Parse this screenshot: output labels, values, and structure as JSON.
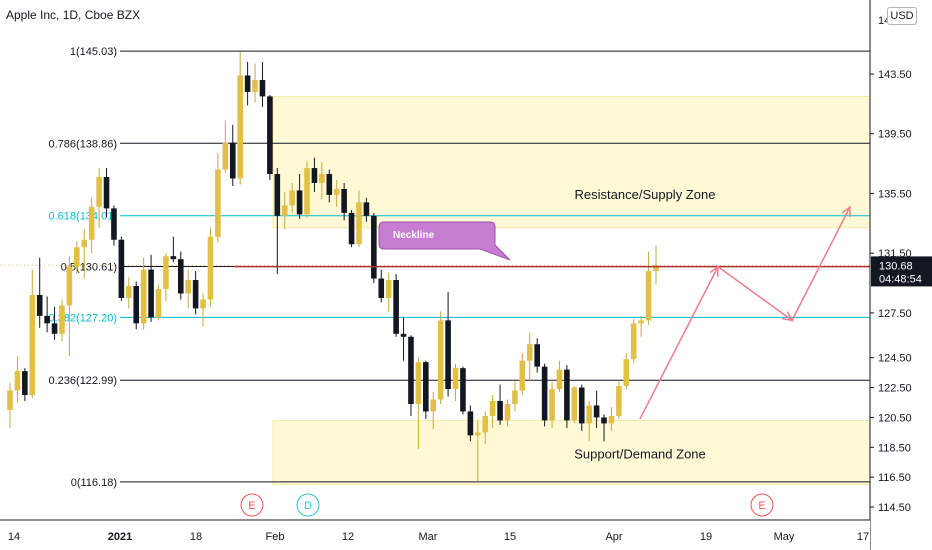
{
  "header": {
    "symbol_title": "Apple Inc, 1D, Cboe BZX",
    "currency": "USD"
  },
  "price_axis": {
    "ticks": [
      "143.50",
      "139.50",
      "135.50",
      "131.50",
      "127.50",
      "124.50",
      "122.50",
      "120.50",
      "118.50",
      "116.50",
      "114.50"
    ],
    "top_partial": "14",
    "current_price": "130.68",
    "countdown": "04:48:54"
  },
  "time_axis": {
    "ticks": [
      "14",
      "2021",
      "18",
      "Feb",
      "12",
      "Mar",
      "15",
      "Apr",
      "19",
      "May",
      "17"
    ]
  },
  "event_markers": [
    {
      "letter": "E",
      "color": "#ef5350"
    },
    {
      "letter": "D",
      "color": "#26c6da"
    },
    {
      "letter": "E",
      "color": "#ef5350"
    }
  ],
  "chart_data": {
    "type": "candlestick",
    "title": "Apple Inc, 1D, Cboe BZX",
    "ylim": [
      114.5,
      145.5
    ],
    "fib_levels": [
      {
        "label": "1(145.03)",
        "value": 145.03,
        "color": "#131722"
      },
      {
        "label": "0.786(138.86)",
        "value": 138.86,
        "color": "#131722"
      },
      {
        "label": "0.618(134.01)",
        "value": 134.01,
        "color": "#00bcd4"
      },
      {
        "label": "0.5(130.61)",
        "value": 130.61,
        "color": "#131722"
      },
      {
        "label": "0.382(127.20)",
        "value": 127.2,
        "color": "#00bcd4"
      },
      {
        "label": "0.236(122.99)",
        "value": 122.99,
        "color": "#131722"
      },
      {
        "label": "0(116.18)",
        "value": 116.18,
        "color": "#131722"
      }
    ],
    "zones": [
      {
        "label": "Resistance/Supply Zone",
        "from": 133.2,
        "to": 142.0
      },
      {
        "label": "Support/Demand Zone",
        "from": 116.0,
        "to": 120.3
      }
    ],
    "annotations": {
      "neckline_label": "Neckline",
      "neckline_value": 130.6
    },
    "candles": [
      [
        121.0,
        122.8,
        119.8,
        122.3
      ],
      [
        122.3,
        124.6,
        121.5,
        123.6
      ],
      [
        123.6,
        123.8,
        121.6,
        122.0
      ],
      [
        122.0,
        130.4,
        121.8,
        128.7
      ],
      [
        128.7,
        131.2,
        126.5,
        127.3
      ],
      [
        127.3,
        128.6,
        126.2,
        126.8
      ],
      [
        126.8,
        127.9,
        125.7,
        126.1
      ],
      [
        126.1,
        128.4,
        125.6,
        128.0
      ],
      [
        128.0,
        131.3,
        124.6,
        130.6
      ],
      [
        130.6,
        132.3,
        130.1,
        131.9
      ],
      [
        131.9,
        133.1,
        129.8,
        132.4
      ],
      [
        132.4,
        135.2,
        131.5,
        134.6
      ],
      [
        134.6,
        137.2,
        133.2,
        136.6
      ],
      [
        136.6,
        137.2,
        133.9,
        134.5
      ],
      [
        134.5,
        134.7,
        132.0,
        132.4
      ],
      [
        132.4,
        132.6,
        128.3,
        128.5
      ],
      [
        128.5,
        129.9,
        127.8,
        129.3
      ],
      [
        129.3,
        129.6,
        126.4,
        126.8
      ],
      [
        126.8,
        131.2,
        126.4,
        130.4
      ],
      [
        130.4,
        131.4,
        126.9,
        127.2
      ],
      [
        127.2,
        129.4,
        127.0,
        129.1
      ],
      [
        129.1,
        131.5,
        128.3,
        131.3
      ],
      [
        131.3,
        132.6,
        130.9,
        131.1
      ],
      [
        131.1,
        131.6,
        128.4,
        128.8
      ],
      [
        128.8,
        130.4,
        127.8,
        129.7
      ],
      [
        129.7,
        130.3,
        127.4,
        127.8
      ],
      [
        127.8,
        128.8,
        126.6,
        128.4
      ],
      [
        128.4,
        133.2,
        127.9,
        132.6
      ],
      [
        132.6,
        138.2,
        132.2,
        137.1
      ],
      [
        137.1,
        140.4,
        136.9,
        138.9
      ],
      [
        138.9,
        140.1,
        136.0,
        136.5
      ],
      [
        136.5,
        145.0,
        136.1,
        143.4
      ],
      [
        143.4,
        144.3,
        141.4,
        142.3
      ],
      [
        142.3,
        144.2,
        141.6,
        143.1
      ],
      [
        143.1,
        144.3,
        141.3,
        142.0
      ],
      [
        142.0,
        142.1,
        136.4,
        136.8
      ],
      [
        136.8,
        137.2,
        130.1,
        134.0
      ],
      [
        134.0,
        135.6,
        133.1,
        134.7
      ],
      [
        134.7,
        136.2,
        134.2,
        135.7
      ],
      [
        135.7,
        136.8,
        133.8,
        134.1
      ],
      [
        134.1,
        137.7,
        133.9,
        137.2
      ],
      [
        137.2,
        137.9,
        135.6,
        136.2
      ],
      [
        136.2,
        137.6,
        135.1,
        136.8
      ],
      [
        136.8,
        137.1,
        134.9,
        135.4
      ],
      [
        135.4,
        136.4,
        134.6,
        135.8
      ],
      [
        135.8,
        136.2,
        133.7,
        134.2
      ],
      [
        134.2,
        134.4,
        131.9,
        132.1
      ],
      [
        132.1,
        135.7,
        131.9,
        134.9
      ],
      [
        134.9,
        135.2,
        133.6,
        134.0
      ],
      [
        134.0,
        134.2,
        129.5,
        129.8
      ],
      [
        129.8,
        130.4,
        128.2,
        128.5
      ],
      [
        128.5,
        130.2,
        127.6,
        129.7
      ],
      [
        129.7,
        130.1,
        125.9,
        126.1
      ],
      [
        126.1,
        127.2,
        124.3,
        125.9
      ],
      [
        125.9,
        126.0,
        120.6,
        121.4
      ],
      [
        121.4,
        124.5,
        118.4,
        124.2
      ],
      [
        124.2,
        124.3,
        120.4,
        120.9
      ],
      [
        120.9,
        122.2,
        119.7,
        121.7
      ],
      [
        121.7,
        127.6,
        121.4,
        127.0
      ],
      [
        127.0,
        128.9,
        121.9,
        122.4
      ],
      [
        122.4,
        124.1,
        121.6,
        123.8
      ],
      [
        123.8,
        123.9,
        120.7,
        120.9
      ],
      [
        120.9,
        121.3,
        118.9,
        119.3
      ],
      [
        119.3,
        120.3,
        116.2,
        119.5
      ],
      [
        119.5,
        120.9,
        118.7,
        120.6
      ],
      [
        120.6,
        122.0,
        119.8,
        121.6
      ],
      [
        121.6,
        122.7,
        120.0,
        120.3
      ],
      [
        120.3,
        121.7,
        119.9,
        121.4
      ],
      [
        121.4,
        122.9,
        120.9,
        122.3
      ],
      [
        122.3,
        124.8,
        122.0,
        124.3
      ],
      [
        124.3,
        126.2,
        122.9,
        125.4
      ],
      [
        125.4,
        125.8,
        123.5,
        123.9
      ],
      [
        123.9,
        124.1,
        119.9,
        120.3
      ],
      [
        120.3,
        122.9,
        119.8,
        122.4
      ],
      [
        122.4,
        124.3,
        122.2,
        123.7
      ],
      [
        123.7,
        124.0,
        119.8,
        120.3
      ],
      [
        120.3,
        122.6,
        120.1,
        122.5
      ],
      [
        122.5,
        122.7,
        119.6,
        120.1
      ],
      [
        120.1,
        121.6,
        118.9,
        121.3
      ],
      [
        121.3,
        122.3,
        119.8,
        120.5
      ],
      [
        120.5,
        120.7,
        118.9,
        120.1
      ],
      [
        120.1,
        121.2,
        119.6,
        120.6
      ],
      [
        120.6,
        122.9,
        120.4,
        122.6
      ],
      [
        122.6,
        124.8,
        122.4,
        124.4
      ],
      [
        124.4,
        127.1,
        124.1,
        126.8
      ],
      [
        126.8,
        127.3,
        125.9,
        127.0
      ],
      [
        127.0,
        131.6,
        126.7,
        130.3
      ],
      [
        130.3,
        132.0,
        129.4,
        130.68
      ]
    ],
    "forecast_path": [
      {
        "value": 120.4
      },
      {
        "value": 130.6
      },
      {
        "value": 127.0
      },
      {
        "value": 134.6
      }
    ]
  }
}
